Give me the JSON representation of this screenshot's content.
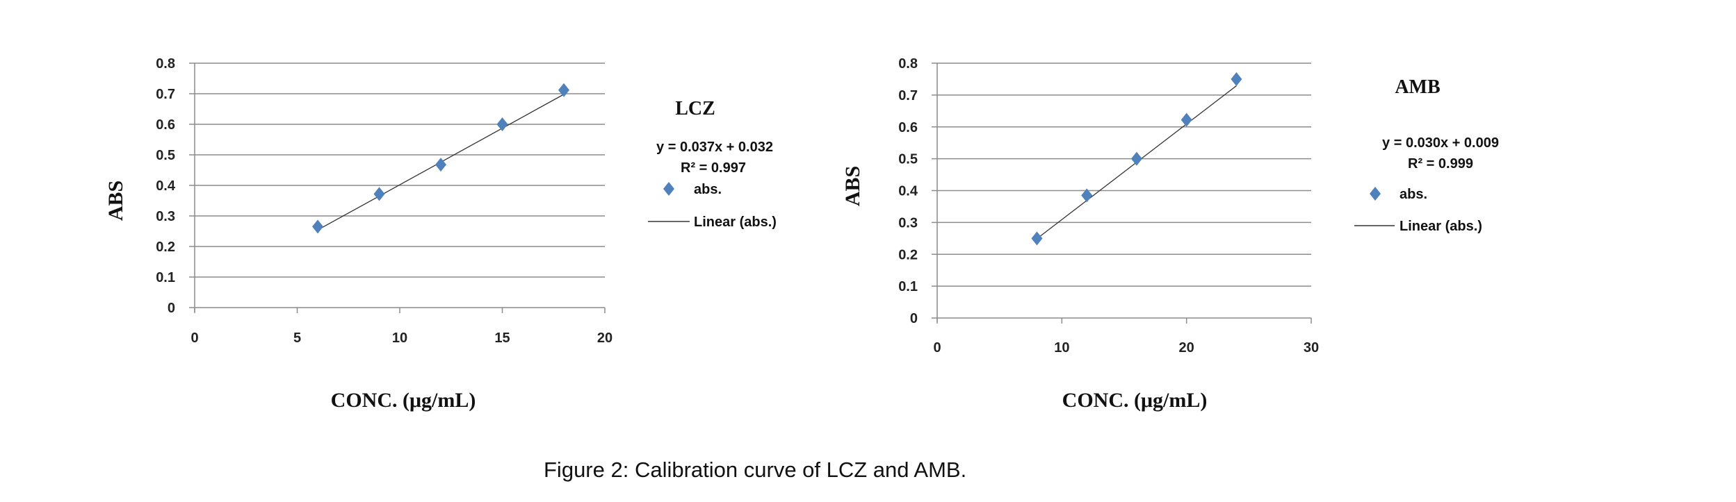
{
  "caption": "Figure 2: Calibration curve of LCZ and AMB.",
  "colors": {
    "marker": "#4F81BD",
    "trendline": "#333333",
    "grid": "#8c8c8c"
  },
  "chart_data": [
    {
      "type": "scatter",
      "title": "LCZ",
      "xlabel": "CONC. (μg/mL)",
      "ylabel": "ABS",
      "xlim": [
        0,
        20
      ],
      "ylim": [
        0,
        0.8
      ],
      "xticks": [
        "0",
        "5",
        "10",
        "15",
        "20"
      ],
      "yticks": [
        "0",
        "0.1",
        "0.2",
        "0.3",
        "0.4",
        "0.5",
        "0.6",
        "0.7",
        "0.8"
      ],
      "grid": true,
      "legend_placement": "right",
      "series": [
        {
          "name": "abs.",
          "x": [
            6,
            9,
            12,
            15,
            18
          ],
          "y": [
            0.265,
            0.372,
            0.468,
            0.6,
            0.712
          ]
        }
      ],
      "trendline": {
        "name": "Linear (abs.)",
        "slope": 0.037,
        "intercept": 0.032,
        "equation": "y = 0.037x + 0.032",
        "r2": "R² = 0.997"
      }
    },
    {
      "type": "scatter",
      "title": "AMB",
      "xlabel": "CONC. (μg/mL)",
      "ylabel": "ABS",
      "xlim": [
        0,
        30
      ],
      "ylim": [
        0,
        0.8
      ],
      "xticks": [
        "0",
        "10",
        "20",
        "30"
      ],
      "yticks": [
        "0",
        "0.1",
        "0.2",
        "0.3",
        "0.4",
        "0.5",
        "0.6",
        "0.7",
        "0.8"
      ],
      "grid": true,
      "legend_placement": "right",
      "series": [
        {
          "name": "abs.",
          "x": [
            8,
            12,
            16,
            20,
            24
          ],
          "y": [
            0.25,
            0.385,
            0.5,
            0.622,
            0.75
          ]
        }
      ],
      "trendline": {
        "name": "Linear (abs.)",
        "slope": 0.03,
        "intercept": 0.009,
        "equation": "y = 0.030x + 0.009",
        "r2": "R² = 0.999"
      }
    }
  ]
}
